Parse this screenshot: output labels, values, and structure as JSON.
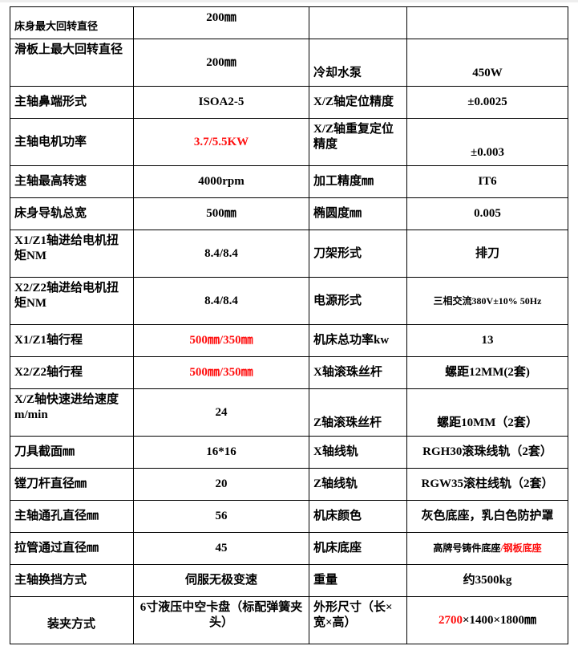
{
  "accent_red": "#ff1010",
  "rows": [
    {
      "cells": [
        {
          "parts": [
            {
              "text": "床身最大回转直径"
            }
          ]
        },
        {
          "parts": [
            {
              "text": "200㎜"
            }
          ]
        },
        {
          "parts": [
            {
              "text": ""
            }
          ]
        },
        {
          "parts": [
            {
              "text": ""
            }
          ]
        }
      ]
    },
    {
      "cells": [
        {
          "parts": [
            {
              "text": "滑板上最大回转直径"
            }
          ]
        },
        {
          "parts": [
            {
              "text": "200㎜"
            }
          ]
        },
        {
          "parts": [
            {
              "text": "冷却水泵"
            }
          ]
        },
        {
          "parts": [
            {
              "text": "450W"
            }
          ]
        }
      ]
    },
    {
      "cells": [
        {
          "parts": [
            {
              "text": "主轴鼻端形式"
            }
          ]
        },
        {
          "parts": [
            {
              "text": "ISOA2-5"
            }
          ]
        },
        {
          "parts": [
            {
              "text": "X/Z轴定位精度"
            }
          ]
        },
        {
          "parts": [
            {
              "text": "±0.0025"
            }
          ]
        }
      ]
    },
    {
      "cells": [
        {
          "parts": [
            {
              "text": "主轴电机功率"
            }
          ]
        },
        {
          "parts": [
            {
              "text": "3.7/5.5KW",
              "red": true
            }
          ]
        },
        {
          "parts": [
            {
              "text": "X/Z轴重复定位精度"
            }
          ]
        },
        {
          "parts": [
            {
              "text": "±0.003"
            }
          ]
        }
      ]
    },
    {
      "cells": [
        {
          "parts": [
            {
              "text": "主轴最高转速"
            }
          ]
        },
        {
          "parts": [
            {
              "text": "4000rpm"
            }
          ]
        },
        {
          "parts": [
            {
              "text": "加工精度㎜"
            }
          ]
        },
        {
          "parts": [
            {
              "text": "IT6"
            }
          ]
        }
      ]
    },
    {
      "cells": [
        {
          "parts": [
            {
              "text": "床身导轨总宽"
            }
          ]
        },
        {
          "parts": [
            {
              "text": "500㎜"
            }
          ]
        },
        {
          "parts": [
            {
              "text": "椭圆度㎜"
            }
          ]
        },
        {
          "parts": [
            {
              "text": "0.005"
            }
          ]
        }
      ]
    },
    {
      "cells": [
        {
          "parts": [
            {
              "text": "X1/Z1轴进给电机扭矩NM"
            }
          ]
        },
        {
          "parts": [
            {
              "text": "8.4/8.4"
            }
          ]
        },
        {
          "parts": [
            {
              "text": "刀架形式"
            }
          ]
        },
        {
          "parts": [
            {
              "text": "排刀"
            }
          ]
        }
      ]
    },
    {
      "cells": [
        {
          "parts": [
            {
              "text": "X2/Z2轴进给电机扭矩NM"
            }
          ]
        },
        {
          "parts": [
            {
              "text": "8.4/8.4"
            }
          ]
        },
        {
          "parts": [
            {
              "text": "电源形式"
            }
          ]
        },
        {
          "parts": [
            {
              "text": "三相交流380V±10%  50Hz"
            }
          ]
        }
      ]
    },
    {
      "cells": [
        {
          "parts": [
            {
              "text": "X1/Z1轴行程"
            }
          ]
        },
        {
          "parts": [
            {
              "text": "500㎜/350㎜",
              "red": true
            }
          ]
        },
        {
          "parts": [
            {
              "text": "机床总功率kw"
            }
          ]
        },
        {
          "parts": [
            {
              "text": "13"
            }
          ]
        }
      ]
    },
    {
      "cells": [
        {
          "parts": [
            {
              "text": "X2/Z2轴行程"
            }
          ]
        },
        {
          "parts": [
            {
              "text": "500㎜/350㎜",
              "red": true
            }
          ]
        },
        {
          "parts": [
            {
              "text": "X轴滚珠丝杆"
            }
          ]
        },
        {
          "parts": [
            {
              "text": "螺距12MM(2套)"
            }
          ]
        }
      ]
    },
    {
      "cells": [
        {
          "parts": [
            {
              "text": "X/Z轴快速进给速度m/min"
            }
          ]
        },
        {
          "parts": [
            {
              "text": "24"
            }
          ]
        },
        {
          "parts": [
            {
              "text": "Z轴滚珠丝杆"
            }
          ]
        },
        {
          "parts": [
            {
              "text": "螺距10MM（2套）"
            }
          ]
        }
      ]
    },
    {
      "cells": [
        {
          "parts": [
            {
              "text": "刀具截面㎜"
            }
          ]
        },
        {
          "parts": [
            {
              "text": "16*16"
            }
          ]
        },
        {
          "parts": [
            {
              "text": "X轴线轨"
            }
          ]
        },
        {
          "parts": [
            {
              "text": "RGH30滚珠线轨（2套）"
            }
          ]
        }
      ]
    },
    {
      "cells": [
        {
          "parts": [
            {
              "text": "镗刀杆直径㎜"
            }
          ]
        },
        {
          "parts": [
            {
              "text": "20"
            }
          ]
        },
        {
          "parts": [
            {
              "text": "Z轴线轨"
            }
          ]
        },
        {
          "parts": [
            {
              "text": "RGW35滚柱线轨（2套）"
            }
          ]
        }
      ]
    },
    {
      "cells": [
        {
          "parts": [
            {
              "text": "主轴通孔直径㎜"
            }
          ]
        },
        {
          "parts": [
            {
              "text": "56"
            }
          ]
        },
        {
          "parts": [
            {
              "text": "机床颜色"
            }
          ]
        },
        {
          "parts": [
            {
              "text": "灰色底座，乳白色防护罩"
            }
          ]
        }
      ]
    },
    {
      "cells": [
        {
          "parts": [
            {
              "text": "拉管通过直径㎜"
            }
          ]
        },
        {
          "parts": [
            {
              "text": "45"
            }
          ]
        },
        {
          "parts": [
            {
              "text": "机床底座"
            }
          ]
        },
        {
          "parts": [
            {
              "text": "高牌号铸件底座"
            },
            {
              "text": "/钢板底座",
              "red": true
            }
          ]
        }
      ]
    },
    {
      "cells": [
        {
          "parts": [
            {
              "text": "主轴换挡方式"
            }
          ]
        },
        {
          "parts": [
            {
              "text": "伺服无极变速"
            }
          ]
        },
        {
          "parts": [
            {
              "text": "重量"
            }
          ]
        },
        {
          "parts": [
            {
              "text": "约3500kg"
            }
          ]
        }
      ]
    },
    {
      "cells": [
        {
          "parts": [
            {
              "text": "装夹方式"
            }
          ]
        },
        {
          "parts": [
            {
              "text": "6寸液压中空卡盘（标配弹簧夹头）"
            }
          ]
        },
        {
          "parts": [
            {
              "text": "外形尺寸（长×宽×高）"
            }
          ]
        },
        {
          "parts": [
            {
              "text": "2700",
              "red": true
            },
            {
              "text": "×1400×1800㎜"
            }
          ]
        }
      ]
    }
  ]
}
